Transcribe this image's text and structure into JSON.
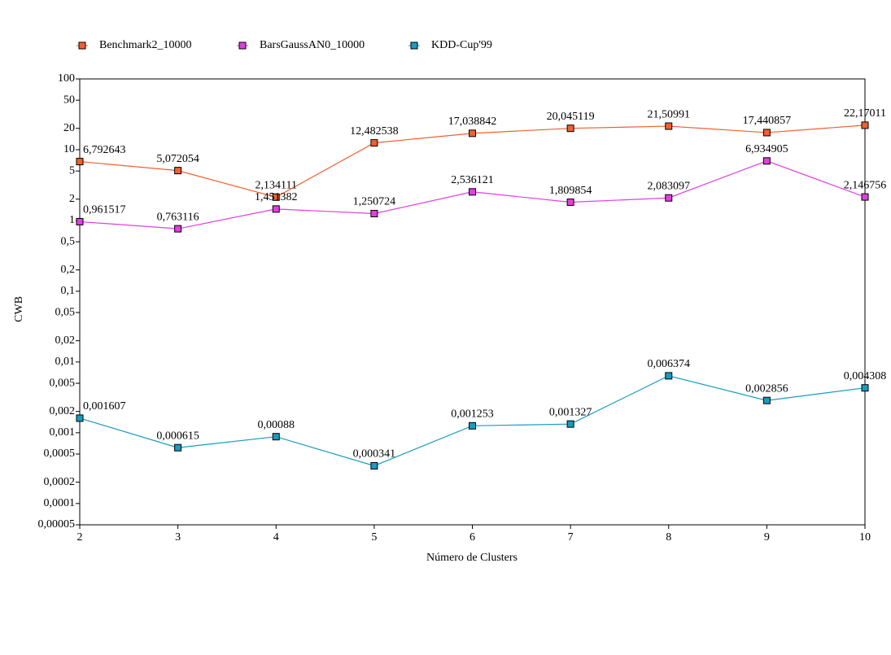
{
  "chart_data": {
    "type": "line",
    "x_label": "Número de Clusters",
    "y_label": "CWB",
    "ylog": true,
    "x": [
      2,
      3,
      4,
      5,
      6,
      7,
      8,
      9,
      10
    ],
    "xlim": [
      2,
      10
    ],
    "xticks": [
      2,
      3,
      4,
      5,
      6,
      7,
      8,
      9,
      10
    ],
    "ylim": [
      5e-05,
      100
    ],
    "yticks": [
      100,
      50,
      20,
      10,
      5,
      2,
      1,
      {
        "value": 0.5,
        "label": "0,5"
      },
      {
        "value": 0.2,
        "label": "0,2"
      },
      {
        "value": 0.1,
        "label": "0,1"
      },
      {
        "value": 0.05,
        "label": "0,05"
      },
      {
        "value": 0.02,
        "label": "0,02"
      },
      {
        "value": 0.01,
        "label": "0,01"
      },
      {
        "value": 0.005,
        "label": "0,005"
      },
      {
        "value": 0.002,
        "label": "0,002"
      },
      {
        "value": 0.001,
        "label": "0,001"
      },
      {
        "value": 0.0005,
        "label": "0,0005"
      },
      {
        "value": 0.0002,
        "label": "0,0002"
      },
      {
        "value": 0.0001,
        "label": "0,0001"
      },
      {
        "value": 5e-05,
        "label": "0,00005"
      }
    ],
    "series": [
      {
        "name": "Benchmark2_10000",
        "color": "#f06030",
        "values": [
          6.792643,
          5.072054,
          2.134111,
          12.482538,
          17.038842,
          20.045119,
          21.50991,
          17.440857,
          22.17011
        ],
        "value_labels": [
          "6,792643",
          "5,072054",
          "2,134111",
          "12,482538",
          "17,038842",
          "20,045119",
          "21,50991",
          "17,440857",
          "22,17011"
        ]
      },
      {
        "name": "BarsGaussAN0_10000",
        "color": "#e040e0",
        "values": [
          0.961517,
          0.763116,
          1.451382,
          1.250724,
          2.536121,
          1.809854,
          2.083097,
          6.934905,
          2.146756
        ],
        "value_labels": [
          "0,961517",
          "0,763116",
          "1,451382",
          "1,250724",
          "2,536121",
          "1,809854",
          "2,083097",
          "6,934905",
          "2,146756"
        ]
      },
      {
        "name": "KDD-Cup'99",
        "color": "#1a9ac0",
        "values": [
          0.001607,
          0.000615,
          0.00088,
          0.000341,
          0.001253,
          0.001327,
          0.006374,
          0.002856,
          0.004308
        ],
        "value_labels": [
          "0,001607",
          "0,000615",
          "0,00088",
          "0,000341",
          "0,001253",
          "0,001327",
          "0,006374",
          "0,002856",
          "0,004308"
        ]
      }
    ]
  }
}
